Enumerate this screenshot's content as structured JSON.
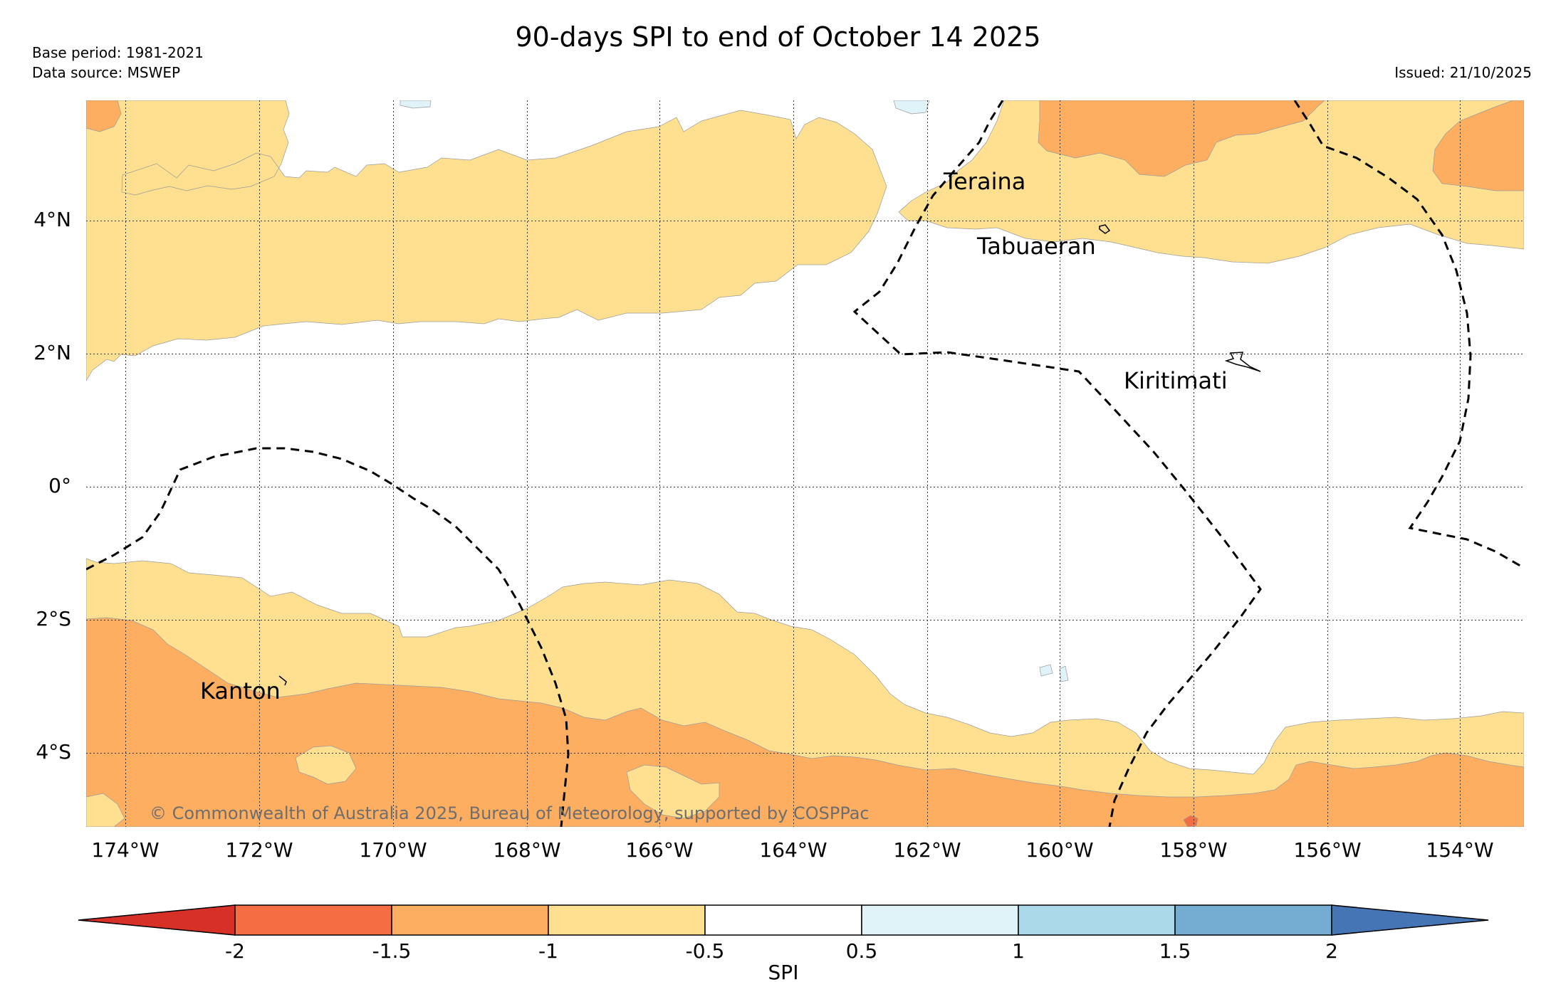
{
  "header": {
    "title": "90-days SPI to end of October 14 2025",
    "base_period": "Base period: 1981-2021",
    "data_source": "Data source: MSWEP",
    "issued": "Issued: 21/10/2025"
  },
  "map": {
    "copyright": "© Commonwealth of Australia 2025, Bureau of Meteorology, supported by COSPPac",
    "lon_labels": [
      "174°W",
      "172°W",
      "170°W",
      "168°W",
      "166°W",
      "164°W",
      "162°W",
      "160°W",
      "158°W",
      "156°W",
      "154°W"
    ],
    "lat_labels": [
      "4°N",
      "2°N",
      "0°",
      "2°S",
      "4°S"
    ],
    "places": {
      "teraina": "Teraina",
      "tabuaeran": "Tabuaeran",
      "kiritimati": "Kiritimati",
      "kanton": "Kanton"
    }
  },
  "colorbar": {
    "label": "SPI",
    "ticks": [
      "-2",
      "-1.5",
      "-1",
      "-0.5",
      "0.5",
      "1",
      "1.5",
      "2"
    ],
    "colors": {
      "below_-2": "#d73027",
      "-2_to_-1.5": "#f46d43",
      "-1.5_to_-1": "#fdae61",
      "-1_to_-0.5": "#fee090",
      "-0.5_to_0.5": "#ffffff",
      "0.5_to_1": "#e0f3f8",
      "1_to_1.5": "#abd9e9",
      "1.5_to_2": "#74add1",
      "above_2": "#4575b4"
    }
  }
}
